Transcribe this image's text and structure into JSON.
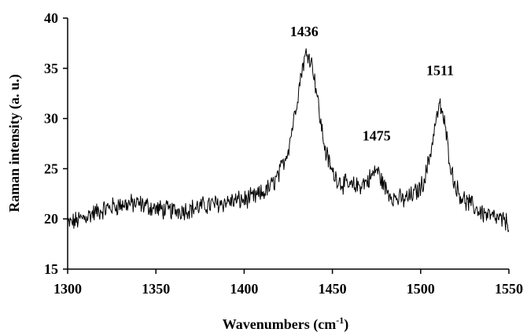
{
  "chart_data": {
    "type": "line",
    "xlabel": "Wavenumbers (cm",
    "xlabel_sup": "-1",
    "xlabel_end": ")",
    "ylabel": "Raman intensity (a. u.)",
    "xlim": [
      1300,
      1550
    ],
    "ylim": [
      15,
      40
    ],
    "xticks": [
      1300,
      1350,
      1400,
      1450,
      1500,
      1550
    ],
    "yticks": [
      15,
      20,
      25,
      30,
      35,
      40
    ],
    "grid": false,
    "annotations": [
      {
        "text": "1436",
        "x": 1434,
        "y": 38.2
      },
      {
        "text": "1475",
        "x": 1475,
        "y": 27.8
      },
      {
        "text": "1511",
        "x": 1511,
        "y": 34.3
      }
    ],
    "series": [
      {
        "x": [
          1300,
          1305,
          1310,
          1315,
          1320,
          1325,
          1330,
          1335,
          1340,
          1345,
          1350,
          1355,
          1360,
          1365,
          1370,
          1375,
          1380,
          1385,
          1390,
          1395,
          1400,
          1405,
          1410,
          1415,
          1420,
          1425,
          1428,
          1431,
          1433,
          1435,
          1436,
          1437,
          1439,
          1441,
          1443,
          1446,
          1450,
          1455,
          1460,
          1465,
          1470,
          1473,
          1475,
          1477,
          1480,
          1485,
          1490,
          1495,
          1500,
          1503,
          1506,
          1508,
          1510,
          1511,
          1512,
          1514,
          1516,
          1518,
          1521,
          1525,
          1530,
          1535,
          1540,
          1545,
          1550
        ],
        "values": [
          19.5,
          19.8,
          20.2,
          20.6,
          20.9,
          21.2,
          21.4,
          21.5,
          21.5,
          21.3,
          21.0,
          20.9,
          20.8,
          20.9,
          21.0,
          21.2,
          21.4,
          21.5,
          21.7,
          21.8,
          21.9,
          22.1,
          22.5,
          23.2,
          24.5,
          27.0,
          29.8,
          33.0,
          35.2,
          36.3,
          36.6,
          36.3,
          35.0,
          32.8,
          30.0,
          26.8,
          24.6,
          23.6,
          23.2,
          23.3,
          23.8,
          24.4,
          25.0,
          24.2,
          23.0,
          22.1,
          21.9,
          22.3,
          23.1,
          24.5,
          27.0,
          29.2,
          30.8,
          31.2,
          30.8,
          29.0,
          26.5,
          24.3,
          22.8,
          21.8,
          21.2,
          20.6,
          20.2,
          19.9,
          19.6
        ]
      }
    ]
  }
}
